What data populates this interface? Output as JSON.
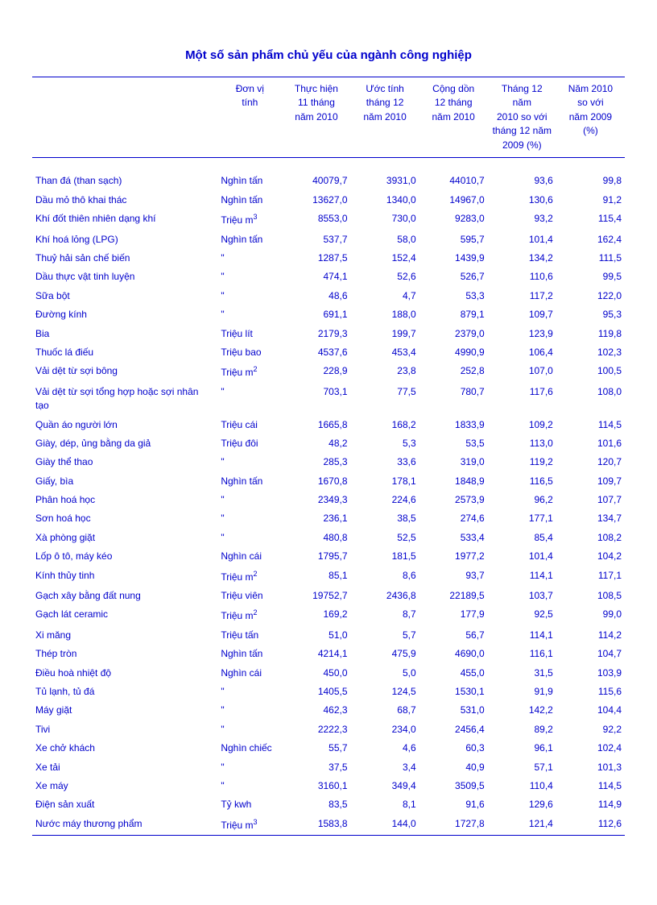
{
  "title": "Một số sản phẩm chủ yếu của ngành công nghiệp",
  "text_color": "#0000cc",
  "background_color": "#ffffff",
  "columns": [
    {
      "key": "name",
      "label": "",
      "align": "left"
    },
    {
      "key": "unit",
      "label": "Đơn vị\ntính",
      "align": "left"
    },
    {
      "key": "c11",
      "label": "Thực hiện\n11 tháng\nnăm 2010",
      "align": "right"
    },
    {
      "key": "c12",
      "label": "Ước tính\ntháng 12\nnăm 2010",
      "align": "right"
    },
    {
      "key": "cd",
      "label": "Cộng dồn\n12 tháng\nnăm 2010",
      "align": "right"
    },
    {
      "key": "t12",
      "label": "Tháng 12 năm\n2010 so với\ntháng 12 năm\n2009 (%)",
      "align": "right"
    },
    {
      "key": "yr",
      "label": "Năm 2010\nso với\nnăm 2009\n(%)",
      "align": "right"
    }
  ],
  "rows": [
    {
      "name": "Than đá (than sạch)",
      "unit": "Nghìn tấn",
      "c11": "40079,7",
      "c12": "3931,0",
      "cd": "44010,7",
      "t12": "93,6",
      "yr": "99,8"
    },
    {
      "name": "Dầu mỏ thô khai thác",
      "unit": "Nghìn tấn",
      "c11": "13627,0",
      "c12": "1340,0",
      "cd": "14967,0",
      "t12": "130,6",
      "yr": "91,2"
    },
    {
      "name": "Khí đốt thiên nhiên dạng khí",
      "unit": "Triệu m³",
      "unit_html": "Triệu m<sup>3</sup>",
      "c11": "8553,0",
      "c12": "730,0",
      "cd": "9283,0",
      "t12": "93,2",
      "yr": "115,4"
    },
    {
      "name": "Khí hoá lỏng (LPG)",
      "unit": "Nghìn tấn",
      "c11": "537,7",
      "c12": "58,0",
      "cd": "595,7",
      "t12": "101,4",
      "yr": "162,4"
    },
    {
      "name": "Thuỷ hải sản chế biến",
      "unit": "\"",
      "c11": "1287,5",
      "c12": "152,4",
      "cd": "1439,9",
      "t12": "134,2",
      "yr": "111,5"
    },
    {
      "name": "Dầu thực vật tinh luyện",
      "unit": "\"",
      "c11": "474,1",
      "c12": "52,6",
      "cd": "526,7",
      "t12": "110,6",
      "yr": "99,5"
    },
    {
      "name": "Sữa bột",
      "unit": "\"",
      "c11": "48,6",
      "c12": "4,7",
      "cd": "53,3",
      "t12": "117,2",
      "yr": "122,0"
    },
    {
      "name": "Đường kính",
      "unit": "\"",
      "c11": "691,1",
      "c12": "188,0",
      "cd": "879,1",
      "t12": "109,7",
      "yr": "95,3"
    },
    {
      "name": "Bia",
      "unit": "Triệu lít",
      "c11": "2179,3",
      "c12": "199,7",
      "cd": "2379,0",
      "t12": "123,9",
      "yr": "119,8"
    },
    {
      "name": "Thuốc lá điếu",
      "unit": "Triệu bao",
      "c11": "4537,6",
      "c12": "453,4",
      "cd": "4990,9",
      "t12": "106,4",
      "yr": "102,3"
    },
    {
      "name": "Vải dệt từ sợi bông",
      "unit": "Triệu m²",
      "unit_html": "Triệu m<sup>2</sup>",
      "c11": "228,9",
      "c12": "23,8",
      "cd": "252,8",
      "t12": "107,0",
      "yr": "100,5"
    },
    {
      "name": "Vải dệt từ sợi tổng hợp hoặc sợi nhân tạo",
      "unit": "\"",
      "c11": "703,1",
      "c12": "77,5",
      "cd": "780,7",
      "t12": "117,6",
      "yr": "108,0"
    },
    {
      "name": "Quần áo người lớn",
      "unit": "Triệu cái",
      "c11": "1665,8",
      "c12": "168,2",
      "cd": "1833,9",
      "t12": "109,2",
      "yr": "114,5"
    },
    {
      "name": "Giày, dép, ủng bằng da giả",
      "unit": "Triệu đôi",
      "c11": "48,2",
      "c12": "5,3",
      "cd": "53,5",
      "t12": "113,0",
      "yr": "101,6"
    },
    {
      "name": "Giày thể thao",
      "unit": "\"",
      "c11": "285,3",
      "c12": "33,6",
      "cd": "319,0",
      "t12": "119,2",
      "yr": "120,7"
    },
    {
      "name": "Giấy, bìa",
      "unit": "Nghìn tấn",
      "c11": "1670,8",
      "c12": "178,1",
      "cd": "1848,9",
      "t12": "116,5",
      "yr": "109,7"
    },
    {
      "name": "Phân hoá học",
      "unit": "\"",
      "c11": "2349,3",
      "c12": "224,6",
      "cd": "2573,9",
      "t12": "96,2",
      "yr": "107,7"
    },
    {
      "name": "Sơn hoá học",
      "unit": "\"",
      "c11": "236,1",
      "c12": "38,5",
      "cd": "274,6",
      "t12": "177,1",
      "yr": "134,7"
    },
    {
      "name": "Xà phòng giặt",
      "unit": "\"",
      "c11": "480,8",
      "c12": "52,5",
      "cd": "533,4",
      "t12": "85,4",
      "yr": "108,2"
    },
    {
      "name": "Lốp ô tô, máy kéo",
      "unit": "Nghìn cái",
      "c11": "1795,7",
      "c12": "181,5",
      "cd": "1977,2",
      "t12": "101,4",
      "yr": "104,2"
    },
    {
      "name": "Kính thủy tinh",
      "unit": "Triệu m²",
      "unit_html": "Triệu m<sup>2</sup>",
      "c11": "85,1",
      "c12": "8,6",
      "cd": "93,7",
      "t12": "114,1",
      "yr": "117,1"
    },
    {
      "name": "Gạch xây bằng đất nung",
      "unit": "Triệu viên",
      "c11": "19752,7",
      "c12": "2436,8",
      "cd": "22189,5",
      "t12": "103,7",
      "yr": "108,5"
    },
    {
      "name": "Gạch lát ceramic",
      "unit": "Triệu m²",
      "unit_html": "Triệu m<sup>2</sup>",
      "c11": "169,2",
      "c12": "8,7",
      "cd": "177,9",
      "t12": "92,5",
      "yr": "99,0"
    },
    {
      "name": "Xi măng",
      "unit": "Triệu tấn",
      "c11": "51,0",
      "c12": "5,7",
      "cd": "56,7",
      "t12": "114,1",
      "yr": "114,2"
    },
    {
      "name": "Thép tròn",
      "unit": "Nghìn tấn",
      "c11": "4214,1",
      "c12": "475,9",
      "cd": "4690,0",
      "t12": "116,1",
      "yr": "104,7"
    },
    {
      "name": "Điều hoà nhiệt độ",
      "unit": "Nghìn cái",
      "c11": "450,0",
      "c12": "5,0",
      "cd": "455,0",
      "t12": "31,5",
      "yr": "103,9"
    },
    {
      "name": "Tủ lạnh, tủ đá",
      "unit": "\"",
      "c11": "1405,5",
      "c12": "124,5",
      "cd": "1530,1",
      "t12": "91,9",
      "yr": "115,6"
    },
    {
      "name": "Máy giặt",
      "unit": "\"",
      "c11": "462,3",
      "c12": "68,7",
      "cd": "531,0",
      "t12": "142,2",
      "yr": "104,4"
    },
    {
      "name": "Tivi",
      "unit": "\"",
      "c11": "2222,3",
      "c12": "234,0",
      "cd": "2456,4",
      "t12": "89,2",
      "yr": "92,2"
    },
    {
      "name": "Xe chở khách",
      "unit": "Nghìn chiếc",
      "c11": "55,7",
      "c12": "4,6",
      "cd": "60,3",
      "t12": "96,1",
      "yr": "102,4"
    },
    {
      "name": "Xe tải",
      "unit": "\"",
      "c11": "37,5",
      "c12": "3,4",
      "cd": "40,9",
      "t12": "57,1",
      "yr": "101,3"
    },
    {
      "name": "Xe máy",
      "unit": "\"",
      "c11": "3160,1",
      "c12": "349,4",
      "cd": "3509,5",
      "t12": "110,4",
      "yr": "114,5"
    },
    {
      "name": "Điện sản xuất",
      "unit": "Tỷ kwh",
      "c11": "83,5",
      "c12": "8,1",
      "cd": "91,6",
      "t12": "129,6",
      "yr": "114,9"
    },
    {
      "name": "Nước máy thương phẩm",
      "unit": "Triệu m³",
      "unit_html": "Triệu m<sup>3</sup>",
      "c11": "1583,8",
      "c12": "144,0",
      "cd": "1727,8",
      "t12": "121,4",
      "yr": "112,6"
    }
  ]
}
